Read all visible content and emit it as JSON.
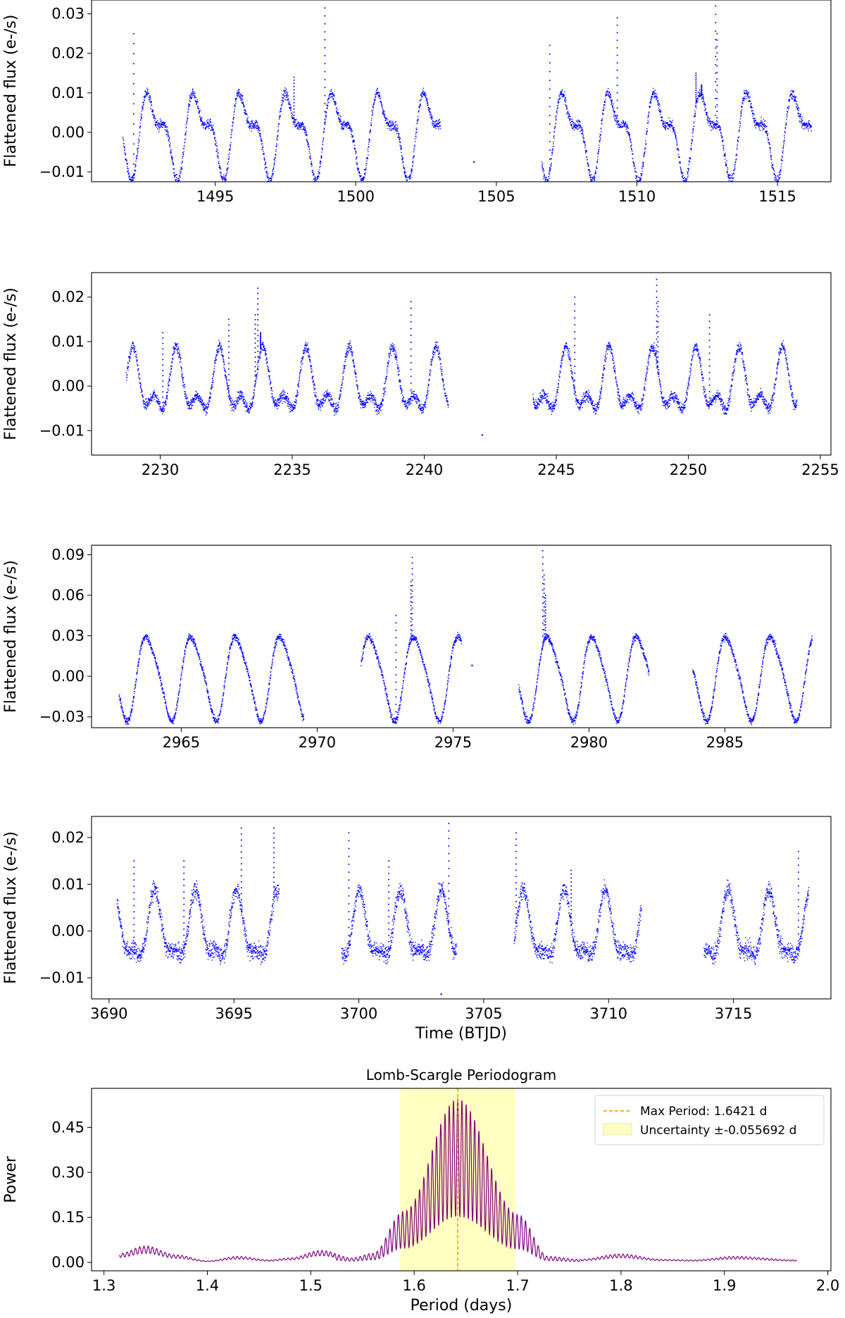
{
  "chart_data": [
    {
      "type": "scatter",
      "title": "",
      "xlabel": "",
      "ylabel": "Flattened flux (e-/s)",
      "xlim": [
        1490.6,
        1516.9
      ],
      "ylim": [
        -0.0125,
        0.0335
      ],
      "xticks": [
        1495,
        1500,
        1505,
        1510,
        1515
      ],
      "xtick_labels": [
        "1495",
        "1500",
        "1505",
        "1510",
        "1515"
      ],
      "yticks": [
        -0.01,
        0.0,
        0.01,
        0.02,
        0.03
      ],
      "ytick_labels": [
        "−0.01",
        "0.00",
        "0.01",
        "0.02",
        "0.03"
      ],
      "grid": false,
      "color": "#0000ff",
      "segments": [
        [
          1491.7,
          1503.0
        ],
        [
          1506.6,
          1516.2
        ]
      ],
      "gap_points": [
        [
          1504.2,
          -0.0075
        ]
      ],
      "signal": {
        "period_d": 1.64,
        "components": [
          [
            0.0085,
            1.0,
            0.3
          ],
          [
            0.0045,
            2.0,
            1.1
          ]
        ],
        "noise": 0.0012
      },
      "flares": [
        [
          1492.1,
          0.025
        ],
        [
          1498.9,
          0.0315
        ],
        [
          1497.8,
          0.014
        ],
        [
          1506.9,
          0.022
        ],
        [
          1509.3,
          0.029
        ],
        [
          1512.8,
          0.032
        ],
        [
          1512.85,
          0.025
        ],
        [
          1512.1,
          0.015
        ],
        [
          1512.3,
          0.012
        ]
      ]
    },
    {
      "type": "scatter",
      "title": "",
      "xlabel": "",
      "ylabel": "Flattened flux (e-/s)",
      "xlim": [
        2227.4,
        2255.4
      ],
      "ylim": [
        -0.0155,
        0.0255
      ],
      "xticks": [
        2230,
        2235,
        2240,
        2245,
        2250,
        2255
      ],
      "xtick_labels": [
        "2230",
        "2235",
        "2240",
        "2245",
        "2250",
        "2255"
      ],
      "yticks": [
        -0.01,
        0.0,
        0.01,
        0.02
      ],
      "ytick_labels": [
        "−0.01",
        "0.00",
        "0.01",
        "0.02"
      ],
      "grid": false,
      "color": "#0000ff",
      "segments": [
        [
          2228.7,
          2240.9
        ],
        [
          2244.1,
          2254.1
        ]
      ],
      "gap_points": [
        [
          2242.2,
          -0.011
        ]
      ],
      "signal": {
        "period_d": 1.64,
        "components": [
          [
            0.0055,
            1.0,
            0.8
          ],
          [
            0.0035,
            2.0,
            0.2
          ]
        ],
        "noise": 0.0012
      },
      "flares": [
        [
          2233.7,
          0.022
        ],
        [
          2233.6,
          0.016
        ],
        [
          2233.8,
          0.012
        ],
        [
          2239.5,
          0.019
        ],
        [
          2245.7,
          0.02
        ],
        [
          2248.8,
          0.024
        ],
        [
          2248.85,
          0.019
        ],
        [
          2250.8,
          0.016
        ],
        [
          2232.6,
          0.015
        ],
        [
          2230.1,
          0.012
        ]
      ]
    },
    {
      "type": "scatter",
      "title": "",
      "xlabel": "",
      "ylabel": "Flattened flux (e-/s)",
      "xlim": [
        2961.7,
        2988.9
      ],
      "ylim": [
        -0.038,
        0.097
      ],
      "xticks": [
        2965,
        2970,
        2975,
        2980,
        2985
      ],
      "xtick_labels": [
        "2965",
        "2970",
        "2975",
        "2980",
        "2985"
      ],
      "yticks": [
        -0.03,
        0.0,
        0.03,
        0.06,
        0.09
      ],
      "ytick_labels": [
        "−0.03",
        "0.00",
        "0.03",
        "0.06",
        "0.09"
      ],
      "grid": false,
      "color": "#0000ff",
      "segments": [
        [
          2962.7,
          2969.5
        ],
        [
          2971.6,
          2975.3
        ],
        [
          2977.4,
          2982.2
        ],
        [
          2983.8,
          2988.2
        ]
      ],
      "gap_points": [
        [
          2975.7,
          0.008
        ]
      ],
      "signal": {
        "period_d": 1.64,
        "components": [
          [
            0.03,
            1.0,
            0.5
          ],
          [
            0.005,
            2.0,
            1.4
          ]
        ],
        "noise": 0.0025
      },
      "flares": [
        [
          2973.5,
          0.088
        ],
        [
          2973.45,
          0.07
        ],
        [
          2972.9,
          0.045
        ],
        [
          2978.3,
          0.093
        ],
        [
          2978.35,
          0.075
        ],
        [
          2978.4,
          0.06
        ]
      ]
    },
    {
      "type": "scatter",
      "title": "",
      "xlabel": "Time (BTJD)",
      "ylabel": "Flattened flux (e-/s)",
      "xlim": [
        3689.3,
        3718.9
      ],
      "ylim": [
        -0.0145,
        0.0245
      ],
      "xticks": [
        3690,
        3695,
        3700,
        3705,
        3710,
        3715
      ],
      "xtick_labels": [
        "3690",
        "3695",
        "3700",
        "3705",
        "3710",
        "3715"
      ],
      "yticks": [
        -0.01,
        0.0,
        0.01,
        0.02
      ],
      "ytick_labels": [
        "−0.01",
        "0.00",
        "0.01",
        "0.02"
      ],
      "grid": false,
      "color": "#0000ff",
      "segments": [
        [
          3690.3,
          3696.8
        ],
        [
          3699.3,
          3703.9
        ],
        [
          3706.2,
          3711.3
        ],
        [
          3713.8,
          3718.0
        ]
      ],
      "gap_points": [
        [
          3703.3,
          -0.0135
        ]
      ],
      "signal": {
        "period_d": 1.64,
        "components": [
          [
            0.0065,
            1.0,
            0.9
          ],
          [
            0.0025,
            2.0,
            0.4
          ]
        ],
        "noise": 0.0018
      },
      "flares": [
        [
          3695.3,
          0.022
        ],
        [
          3696.6,
          0.022
        ],
        [
          3703.6,
          0.023
        ],
        [
          3699.6,
          0.021
        ],
        [
          3706.3,
          0.021
        ],
        [
          3701.2,
          0.015
        ],
        [
          3691.0,
          0.015
        ],
        [
          3693.0,
          0.015
        ],
        [
          3717.6,
          0.017
        ],
        [
          3708.5,
          0.013
        ]
      ]
    },
    {
      "type": "line",
      "title": "Lomb-Scargle Periodogram",
      "xlabel": "Period (days)",
      "ylabel": "Power",
      "xlim": [
        1.288,
        2.003
      ],
      "ylim": [
        -0.028,
        0.58
      ],
      "xticks": [
        1.3,
        1.4,
        1.5,
        1.6,
        1.7,
        1.8,
        1.9,
        2.0
      ],
      "xtick_labels": [
        "1.3",
        "1.4",
        "1.5",
        "1.6",
        "1.7",
        "1.8",
        "1.9",
        "2.0"
      ],
      "yticks": [
        0.0,
        0.15,
        0.3,
        0.45
      ],
      "ytick_labels": [
        "0.00",
        "0.15",
        "0.30",
        "0.45"
      ],
      "grid": false,
      "color": "#800080",
      "x_range": [
        1.315,
        1.97
      ],
      "max_period": 1.6421,
      "peak_power": 0.545,
      "envelope_samples": [
        [
          1.315,
          0.03
        ],
        [
          1.34,
          0.055
        ],
        [
          1.37,
          0.025
        ],
        [
          1.4,
          0.005
        ],
        [
          1.43,
          0.02
        ],
        [
          1.46,
          0.008
        ],
        [
          1.48,
          0.015
        ],
        [
          1.51,
          0.04
        ],
        [
          1.54,
          0.015
        ],
        [
          1.56,
          0.03
        ],
        [
          1.59,
          0.17
        ],
        [
          1.6421,
          0.545
        ],
        [
          1.7,
          0.16
        ],
        [
          1.73,
          0.02
        ],
        [
          1.76,
          0.01
        ],
        [
          1.8,
          0.028
        ],
        [
          1.84,
          0.01
        ],
        [
          1.87,
          0.008
        ],
        [
          1.91,
          0.02
        ],
        [
          1.97,
          0.008
        ]
      ],
      "uncertainty_band": [
        1.5864,
        1.6978
      ],
      "band_color": "#ffffc2",
      "max_line_color": "#ff8c00",
      "legend": {
        "placement": "top-right",
        "entries": [
          "Max Period: 1.6421 d",
          "Uncertainty ±-0.055692 d"
        ]
      }
    }
  ]
}
